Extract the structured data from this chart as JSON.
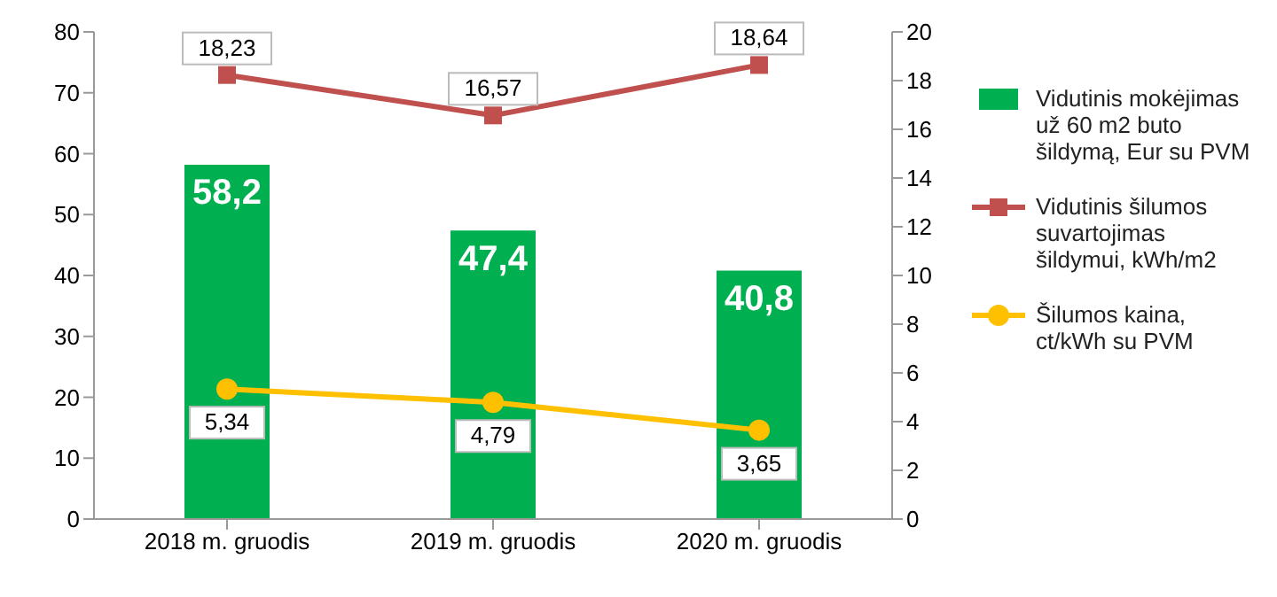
{
  "chart_data": {
    "type": "bar",
    "categories": [
      "2018 m. gruodis",
      "2019 m. gruodis",
      "2020 m. gruodis"
    ],
    "series": [
      {
        "name": "Vidutinis mokėjimas už 60 m2 buto šildymą, Eur su PVM",
        "color": "#00b050",
        "values": [
          58.2,
          47.4,
          40.8
        ],
        "value_labels": [
          "58,2",
          "47,4",
          "40,8"
        ]
      },
      {
        "type": "line",
        "axis": "y2",
        "marker": "square",
        "name": "Vidutinis šilumos suvartojimas šildymui, kWh/m2",
        "color": "#c0504d",
        "values": [
          18.23,
          16.57,
          18.64
        ],
        "value_labels": [
          "18,23",
          "16,57",
          "18,64"
        ]
      },
      {
        "type": "line",
        "axis": "y2",
        "marker": "circle",
        "name": "Šilumos kaina, ct/kWh su PVM",
        "color": "#ffc000",
        "values": [
          5.34,
          4.79,
          3.65
        ],
        "value_labels": [
          "5,34",
          "4,79",
          "3,65"
        ]
      }
    ],
    "ylim": [
      0,
      80
    ],
    "yticks": [
      0,
      10,
      20,
      30,
      40,
      50,
      60,
      70,
      80
    ],
    "y2lim": [
      0,
      20
    ],
    "y2ticks": [
      0,
      2,
      4,
      6,
      8,
      10,
      12,
      14,
      16,
      18,
      20
    ],
    "legend": "right",
    "grid": false
  }
}
